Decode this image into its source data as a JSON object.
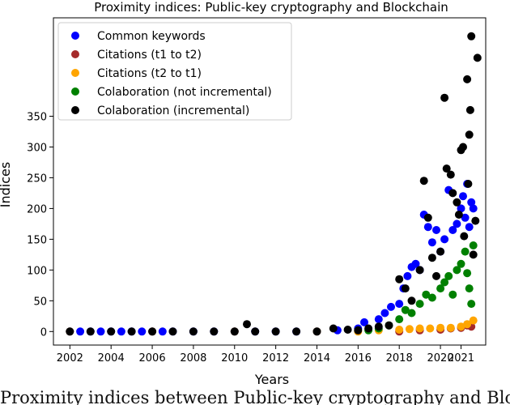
{
  "chart_data": {
    "type": "scatter",
    "title": "Proximity indices: Public-key cryptography and Blockchain",
    "xlabel": "Years",
    "ylabel": "Indices",
    "xlim": [
      2001.2,
      2022.2
    ],
    "ylim": [
      -22,
      510
    ],
    "x_ticks": [
      "2002",
      "2004",
      "2006",
      "2008",
      "2010",
      "2012",
      "2014",
      "2016",
      "2018",
      "2020",
      "2021"
    ],
    "y_ticks": [
      "0",
      "50",
      "100",
      "150",
      "200",
      "250",
      "300",
      "350"
    ],
    "legend_position": "top-left",
    "grid": false,
    "series": [
      {
        "name": "Common keywords",
        "color": "#0000ff",
        "points": [
          [
            2002.0,
            0
          ],
          [
            2002.5,
            0
          ],
          [
            2003.0,
            0
          ],
          [
            2003.5,
            0
          ],
          [
            2004.0,
            0
          ],
          [
            2004.5,
            0
          ],
          [
            2005.0,
            0
          ],
          [
            2005.5,
            0
          ],
          [
            2006.0,
            0
          ],
          [
            2006.5,
            0
          ],
          [
            2007.0,
            0
          ],
          [
            2008.0,
            0
          ],
          [
            2009.0,
            0
          ],
          [
            2010.0,
            0
          ],
          [
            2011.0,
            0
          ],
          [
            2012.0,
            0
          ],
          [
            2013.0,
            0
          ],
          [
            2014.0,
            0
          ],
          [
            2015.0,
            2
          ],
          [
            2016.0,
            5
          ],
          [
            2016.3,
            15
          ],
          [
            2017.0,
            20
          ],
          [
            2017.3,
            30
          ],
          [
            2017.6,
            40
          ],
          [
            2018.0,
            45
          ],
          [
            2018.2,
            70
          ],
          [
            2018.4,
            90
          ],
          [
            2018.6,
            105
          ],
          [
            2018.8,
            110
          ],
          [
            2019.0,
            100
          ],
          [
            2019.2,
            190
          ],
          [
            2019.4,
            170
          ],
          [
            2019.6,
            145
          ],
          [
            2019.8,
            165
          ],
          [
            2020.0,
            130
          ],
          [
            2020.2,
            150
          ],
          [
            2020.4,
            230
          ],
          [
            2020.6,
            165
          ],
          [
            2020.8,
            175
          ],
          [
            2021.0,
            200
          ],
          [
            2021.1,
            220
          ],
          [
            2021.2,
            185
          ],
          [
            2021.3,
            240
          ],
          [
            2021.4,
            170
          ],
          [
            2021.5,
            210
          ],
          [
            2021.6,
            200
          ]
        ]
      },
      {
        "name": "Citations (t1 to t2)",
        "color": "#a52a2a",
        "points": [
          [
            2018.0,
            0
          ],
          [
            2019.0,
            2
          ],
          [
            2020.0,
            3
          ],
          [
            2020.5,
            5
          ],
          [
            2021.0,
            6
          ],
          [
            2021.3,
            10
          ],
          [
            2021.5,
            8
          ]
        ]
      },
      {
        "name": "Citations (t2 to t1)",
        "color": "#ffa500",
        "points": [
          [
            2002.0,
            0
          ],
          [
            2006.0,
            0
          ],
          [
            2010.0,
            0
          ],
          [
            2014.0,
            0
          ],
          [
            2016.0,
            0
          ],
          [
            2017.0,
            2
          ],
          [
            2018.0,
            3
          ],
          [
            2018.5,
            4
          ],
          [
            2019.0,
            5
          ],
          [
            2019.5,
            5
          ],
          [
            2020.0,
            6
          ],
          [
            2020.5,
            6
          ],
          [
            2021.0,
            8
          ],
          [
            2021.3,
            12
          ],
          [
            2021.6,
            18
          ]
        ]
      },
      {
        "name": "Colaboration (not incremental)",
        "color": "#008000",
        "points": [
          [
            2016.5,
            2
          ],
          [
            2017.0,
            5
          ],
          [
            2017.5,
            10
          ],
          [
            2018.0,
            20
          ],
          [
            2018.3,
            35
          ],
          [
            2018.6,
            30
          ],
          [
            2019.0,
            45
          ],
          [
            2019.3,
            60
          ],
          [
            2019.6,
            55
          ],
          [
            2020.0,
            70
          ],
          [
            2020.2,
            80
          ],
          [
            2020.4,
            90
          ],
          [
            2020.6,
            60
          ],
          [
            2020.8,
            100
          ],
          [
            2021.0,
            110
          ],
          [
            2021.2,
            130
          ],
          [
            2021.3,
            95
          ],
          [
            2021.4,
            70
          ],
          [
            2021.5,
            45
          ],
          [
            2021.6,
            140
          ]
        ]
      },
      {
        "name": "Colaboration (incremental)",
        "color": "#000000",
        "points": [
          [
            2002.0,
            0
          ],
          [
            2003.0,
            0
          ],
          [
            2004.0,
            0
          ],
          [
            2005.0,
            0
          ],
          [
            2006.0,
            0
          ],
          [
            2007.0,
            0
          ],
          [
            2008.0,
            0
          ],
          [
            2009.0,
            0
          ],
          [
            2010.0,
            0
          ],
          [
            2010.6,
            12
          ],
          [
            2011.0,
            0
          ],
          [
            2012.0,
            0
          ],
          [
            2013.0,
            0
          ],
          [
            2014.0,
            0
          ],
          [
            2014.8,
            5
          ],
          [
            2015.5,
            3
          ],
          [
            2016.0,
            2
          ],
          [
            2016.5,
            5
          ],
          [
            2017.0,
            8
          ],
          [
            2017.5,
            10
          ],
          [
            2018.0,
            85
          ],
          [
            2018.3,
            70
          ],
          [
            2018.6,
            50
          ],
          [
            2019.0,
            100
          ],
          [
            2019.2,
            245
          ],
          [
            2019.4,
            185
          ],
          [
            2019.6,
            120
          ],
          [
            2019.8,
            90
          ],
          [
            2020.0,
            130
          ],
          [
            2020.2,
            380
          ],
          [
            2020.3,
            265
          ],
          [
            2020.5,
            255
          ],
          [
            2020.6,
            225
          ],
          [
            2020.8,
            210
          ],
          [
            2020.9,
            190
          ],
          [
            2021.0,
            295
          ],
          [
            2021.1,
            300
          ],
          [
            2021.15,
            155
          ],
          [
            2021.3,
            410
          ],
          [
            2021.35,
            240
          ],
          [
            2021.4,
            320
          ],
          [
            2021.45,
            360
          ],
          [
            2021.5,
            480
          ],
          [
            2021.6,
            125
          ],
          [
            2021.7,
            180
          ],
          [
            2021.8,
            445
          ]
        ]
      }
    ]
  },
  "caption": "Proximity indices between Public-key cryptography and Blockchain"
}
